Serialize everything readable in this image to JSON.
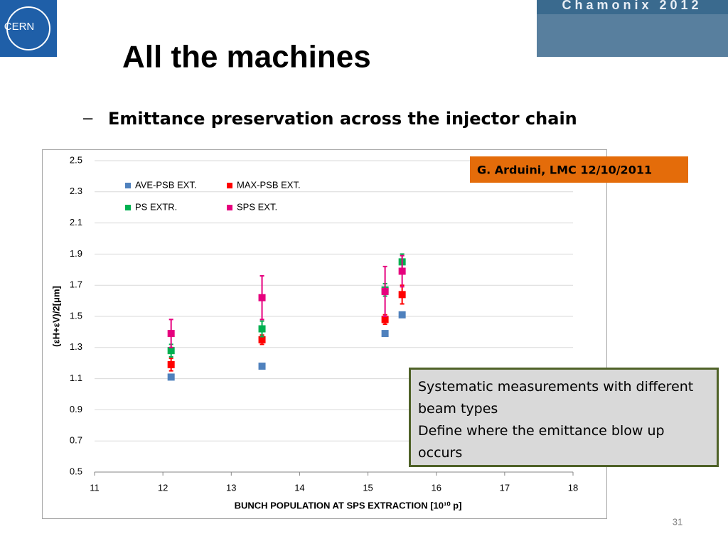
{
  "slide": {
    "logo": "CERN",
    "banner": "Chamonix 2012",
    "title": "All the machines",
    "bullet": "–",
    "subtitle": "Emittance preservation across the injector chain",
    "credit": "G. Arduini, LMC 12/10/2011",
    "note": [
      "Systematic measurements with different beam types",
      "Define where the emittance blow up occurs"
    ],
    "page_number": "31"
  },
  "chart_data": {
    "type": "scatter",
    "xlabel": "BUNCH POPULATION AT SPS EXTRACTION [10¹⁰ p]",
    "ylabel": "(εH+εV)/2[μm]",
    "x": [
      12.12,
      13.45,
      15.25,
      15.5
    ],
    "xlim": [
      11,
      18
    ],
    "xticks": [
      11,
      12,
      13,
      14,
      15,
      16,
      17,
      18
    ],
    "ylim": [
      0.5,
      2.5
    ],
    "yticks": [
      0.5,
      0.7,
      0.9,
      1.1,
      1.3,
      1.5,
      1.7,
      1.9,
      2.1,
      2.3,
      2.5
    ],
    "grid": true,
    "legend": "top-left",
    "series": [
      {
        "name": "AVE-PSB EXT.",
        "color": "#4f81bd",
        "values": [
          1.11,
          1.18,
          1.39,
          1.51
        ]
      },
      {
        "name": "MAX-PSB EXT.",
        "color": "#ff0000",
        "values": [
          1.19,
          1.35,
          1.48,
          1.64
        ],
        "errors": [
          0.04,
          0.03,
          0.03,
          0.06
        ]
      },
      {
        "name": "PS EXTR.",
        "color": "#00b050",
        "values": [
          1.28,
          1.42,
          1.67,
          1.85
        ],
        "errors": [
          0.04,
          0.05,
          0.04,
          0.05
        ]
      },
      {
        "name": "SPS EXT.",
        "color": "#e6007e",
        "values": [
          1.39,
          1.62,
          1.66,
          1.79
        ],
        "errors": [
          0.09,
          0.14,
          0.16,
          0.1
        ]
      }
    ]
  }
}
